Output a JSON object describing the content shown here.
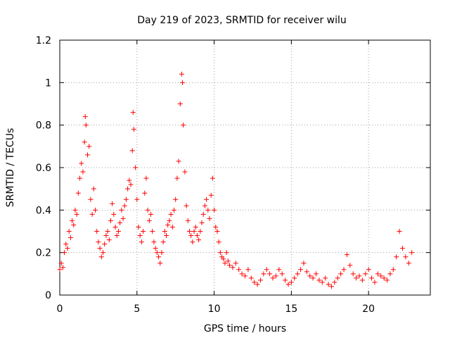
{
  "chart_data": {
    "type": "scatter",
    "title": "Day 219 of 2023, SRMTID for receiver wilu",
    "xlabel": "GPS time / hours",
    "ylabel": "SRMTID / TECUs",
    "xlim": [
      0,
      24
    ],
    "ylim": [
      0,
      1.2
    ],
    "x_ticks": [
      0,
      5,
      10,
      15,
      20
    ],
    "x_tick_labels": [
      "0",
      "5",
      "10",
      "15",
      "20"
    ],
    "y_ticks": [
      0,
      0.2,
      0.4,
      0.6,
      0.8,
      1.0,
      1.2
    ],
    "y_tick_labels": [
      "0",
      "0.2",
      "0.4",
      "0.6",
      "0.8",
      "1",
      "1.2"
    ],
    "grid": true,
    "marker": "+",
    "color": "#ff0000",
    "series": [
      {
        "name": "SRMTID",
        "points": [
          [
            0.0,
            0.12
          ],
          [
            0.1,
            0.15
          ],
          [
            0.2,
            0.13
          ],
          [
            0.3,
            0.2
          ],
          [
            0.4,
            0.24
          ],
          [
            0.5,
            0.22
          ],
          [
            0.6,
            0.3
          ],
          [
            0.7,
            0.27
          ],
          [
            0.8,
            0.35
          ],
          [
            0.9,
            0.33
          ],
          [
            1.0,
            0.4
          ],
          [
            1.1,
            0.38
          ],
          [
            1.2,
            0.48
          ],
          [
            1.3,
            0.55
          ],
          [
            1.4,
            0.62
          ],
          [
            1.5,
            0.58
          ],
          [
            1.6,
            0.72
          ],
          [
            1.65,
            0.84
          ],
          [
            1.7,
            0.8
          ],
          [
            1.8,
            0.66
          ],
          [
            1.9,
            0.7
          ],
          [
            2.0,
            0.45
          ],
          [
            2.1,
            0.38
          ],
          [
            2.2,
            0.5
          ],
          [
            2.3,
            0.4
          ],
          [
            2.4,
            0.3
          ],
          [
            2.5,
            0.25
          ],
          [
            2.6,
            0.22
          ],
          [
            2.7,
            0.18
          ],
          [
            2.8,
            0.2
          ],
          [
            2.9,
            0.24
          ],
          [
            3.0,
            0.28
          ],
          [
            3.1,
            0.3
          ],
          [
            3.2,
            0.26
          ],
          [
            3.3,
            0.35
          ],
          [
            3.4,
            0.43
          ],
          [
            3.5,
            0.38
          ],
          [
            3.6,
            0.32
          ],
          [
            3.7,
            0.28
          ],
          [
            3.8,
            0.3
          ],
          [
            3.9,
            0.34
          ],
          [
            4.0,
            0.4
          ],
          [
            4.1,
            0.36
          ],
          [
            4.2,
            0.42
          ],
          [
            4.3,
            0.45
          ],
          [
            4.4,
            0.5
          ],
          [
            4.5,
            0.54
          ],
          [
            4.6,
            0.52
          ],
          [
            4.7,
            0.68
          ],
          [
            4.75,
            0.86
          ],
          [
            4.8,
            0.78
          ],
          [
            4.9,
            0.6
          ],
          [
            5.0,
            0.45
          ],
          [
            5.1,
            0.32
          ],
          [
            5.2,
            0.28
          ],
          [
            5.3,
            0.25
          ],
          [
            5.4,
            0.3
          ],
          [
            5.5,
            0.48
          ],
          [
            5.6,
            0.55
          ],
          [
            5.7,
            0.4
          ],
          [
            5.8,
            0.35
          ],
          [
            5.9,
            0.38
          ],
          [
            6.0,
            0.3
          ],
          [
            6.1,
            0.25
          ],
          [
            6.2,
            0.22
          ],
          [
            6.3,
            0.2
          ],
          [
            6.4,
            0.18
          ],
          [
            6.5,
            0.15
          ],
          [
            6.6,
            0.2
          ],
          [
            6.7,
            0.25
          ],
          [
            6.8,
            0.3
          ],
          [
            6.9,
            0.28
          ],
          [
            7.0,
            0.33
          ],
          [
            7.1,
            0.35
          ],
          [
            7.2,
            0.38
          ],
          [
            7.3,
            0.32
          ],
          [
            7.4,
            0.4
          ],
          [
            7.5,
            0.45
          ],
          [
            7.6,
            0.55
          ],
          [
            7.7,
            0.63
          ],
          [
            7.8,
            0.9
          ],
          [
            7.9,
            1.04
          ],
          [
            7.95,
            1.0
          ],
          [
            8.0,
            0.8
          ],
          [
            8.1,
            0.58
          ],
          [
            8.2,
            0.42
          ],
          [
            8.3,
            0.35
          ],
          [
            8.4,
            0.3
          ],
          [
            8.5,
            0.28
          ],
          [
            8.6,
            0.25
          ],
          [
            8.7,
            0.3
          ],
          [
            8.8,
            0.32
          ],
          [
            8.9,
            0.28
          ],
          [
            9.0,
            0.26
          ],
          [
            9.1,
            0.3
          ],
          [
            9.2,
            0.34
          ],
          [
            9.3,
            0.38
          ],
          [
            9.4,
            0.42
          ],
          [
            9.5,
            0.45
          ],
          [
            9.6,
            0.4
          ],
          [
            9.7,
            0.36
          ],
          [
            9.8,
            0.47
          ],
          [
            9.9,
            0.55
          ],
          [
            10.0,
            0.4
          ],
          [
            10.1,
            0.32
          ],
          [
            10.2,
            0.3
          ],
          [
            10.3,
            0.25
          ],
          [
            10.4,
            0.2
          ],
          [
            10.5,
            0.18
          ],
          [
            10.6,
            0.17
          ],
          [
            10.7,
            0.15
          ],
          [
            10.8,
            0.2
          ],
          [
            10.9,
            0.16
          ],
          [
            11.0,
            0.14
          ],
          [
            11.2,
            0.13
          ],
          [
            11.4,
            0.15
          ],
          [
            11.6,
            0.12
          ],
          [
            11.8,
            0.1
          ],
          [
            12.0,
            0.09
          ],
          [
            12.2,
            0.12
          ],
          [
            12.4,
            0.08
          ],
          [
            12.6,
            0.06
          ],
          [
            12.8,
            0.05
          ],
          [
            13.0,
            0.07
          ],
          [
            13.2,
            0.1
          ],
          [
            13.4,
            0.12
          ],
          [
            13.6,
            0.1
          ],
          [
            13.8,
            0.08
          ],
          [
            14.0,
            0.09
          ],
          [
            14.2,
            0.12
          ],
          [
            14.4,
            0.1
          ],
          [
            14.6,
            0.07
          ],
          [
            14.8,
            0.05
          ],
          [
            15.0,
            0.06
          ],
          [
            15.2,
            0.08
          ],
          [
            15.4,
            0.1
          ],
          [
            15.6,
            0.12
          ],
          [
            15.8,
            0.15
          ],
          [
            16.0,
            0.11
          ],
          [
            16.2,
            0.09
          ],
          [
            16.4,
            0.08
          ],
          [
            16.6,
            0.1
          ],
          [
            16.8,
            0.07
          ],
          [
            17.0,
            0.06
          ],
          [
            17.2,
            0.08
          ],
          [
            17.4,
            0.05
          ],
          [
            17.6,
            0.04
          ],
          [
            17.8,
            0.06
          ],
          [
            18.0,
            0.08
          ],
          [
            18.2,
            0.1
          ],
          [
            18.4,
            0.12
          ],
          [
            18.6,
            0.19
          ],
          [
            18.8,
            0.14
          ],
          [
            19.0,
            0.1
          ],
          [
            19.2,
            0.08
          ],
          [
            19.4,
            0.09
          ],
          [
            19.6,
            0.07
          ],
          [
            19.8,
            0.1
          ],
          [
            20.0,
            0.12
          ],
          [
            20.2,
            0.08
          ],
          [
            20.4,
            0.06
          ],
          [
            20.6,
            0.1
          ],
          [
            20.8,
            0.09
          ],
          [
            21.0,
            0.08
          ],
          [
            21.2,
            0.07
          ],
          [
            21.4,
            0.1
          ],
          [
            21.6,
            0.12
          ],
          [
            21.8,
            0.18
          ],
          [
            22.0,
            0.3
          ],
          [
            22.2,
            0.22
          ],
          [
            22.4,
            0.18
          ],
          [
            22.6,
            0.15
          ],
          [
            22.8,
            0.2
          ]
        ]
      }
    ]
  }
}
